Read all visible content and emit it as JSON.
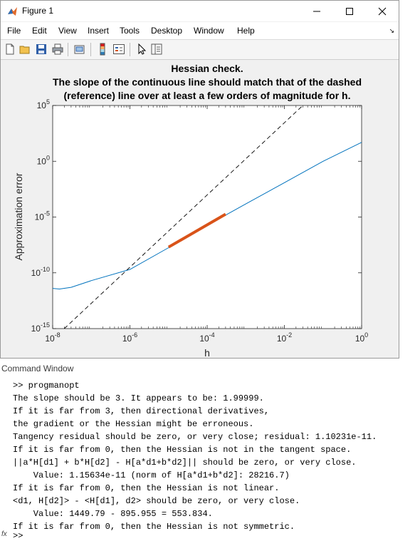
{
  "window": {
    "title": "Figure 1"
  },
  "menubar": {
    "items": [
      "File",
      "Edit",
      "View",
      "Insert",
      "Tools",
      "Desktop",
      "Window",
      "Help"
    ]
  },
  "toolbar": {
    "buttons": [
      "new-figure-icon",
      "open-file-icon",
      "save-icon",
      "print-icon",
      "print-preview-icon",
      "colorbar-icon",
      "legend-icon",
      "pointer-icon",
      "property-editor-icon"
    ]
  },
  "chart_data": {
    "type": "line",
    "title": [
      "Hessian check.",
      "The slope of the continuous line should match that of the dashed",
      "(reference) line over at least a few orders of magnitude for h."
    ],
    "xlabel": "h",
    "ylabel": "Approximation error",
    "xscale": "log",
    "yscale": "log",
    "xlim": [
      1e-08,
      1
    ],
    "ylim": [
      1e-15,
      100000.0
    ],
    "x_tick_labels": [
      "10^-8",
      "10^-6",
      "10^-4",
      "10^-2",
      "10^0"
    ],
    "y_tick_labels": [
      "10^-15",
      "10^-10",
      "10^-5",
      "10^0",
      "10^5"
    ],
    "series": [
      {
        "style": "solid",
        "color": "#0072bd",
        "x": [
          1e-08,
          1.5e-08,
          3e-08,
          1e-07,
          1e-06,
          1e-05,
          0.0001,
          0.001,
          0.01,
          0.1,
          1
        ],
        "y": [
          4e-12,
          3.5e-12,
          5e-12,
          2e-11,
          2e-10,
          1.8e-08,
          1.8e-06,
          0.00015,
          0.012,
          1.0,
          50.0
        ]
      },
      {
        "style": "dashed",
        "color": "#000000",
        "x": [
          2e-08,
          0.03
        ],
        "y": [
          1e-15,
          100000.0
        ]
      },
      {
        "style": "thick",
        "color": "#d95319",
        "x": [
          1e-05,
          0.0003
        ],
        "y": [
          2e-08,
          1.8e-05
        ]
      }
    ],
    "grid": false
  },
  "command_window": {
    "header": "Command Window",
    "lines": [
      ">> progmanopt",
      "The slope should be 3. It appears to be: 1.99999.",
      "If it is far from 3, then directional derivatives,",
      "the gradient or the Hessian might be erroneous.",
      "Tangency residual should be zero, or very close; residual: 1.10231e-11.",
      "If it is far from 0, then the Hessian is not in the tangent space.",
      "||a*H[d1] + b*H[d2] - H[a*d1+b*d2]|| should be zero, or very close.",
      "    Value: 1.15634e-11 (norm of H[a*d1+b*d2]: 28216.7)",
      "If it is far from 0, then the Hessian is not linear.",
      "<d1, H[d2]> - <H[d1], d2> should be zero, or very close.",
      "    Value: 1449.79 - 895.955 = 553.834.",
      "If it is far from 0, then the Hessian is not symmetric."
    ],
    "prompt_symbol": "fx",
    "prompt": ">>"
  }
}
